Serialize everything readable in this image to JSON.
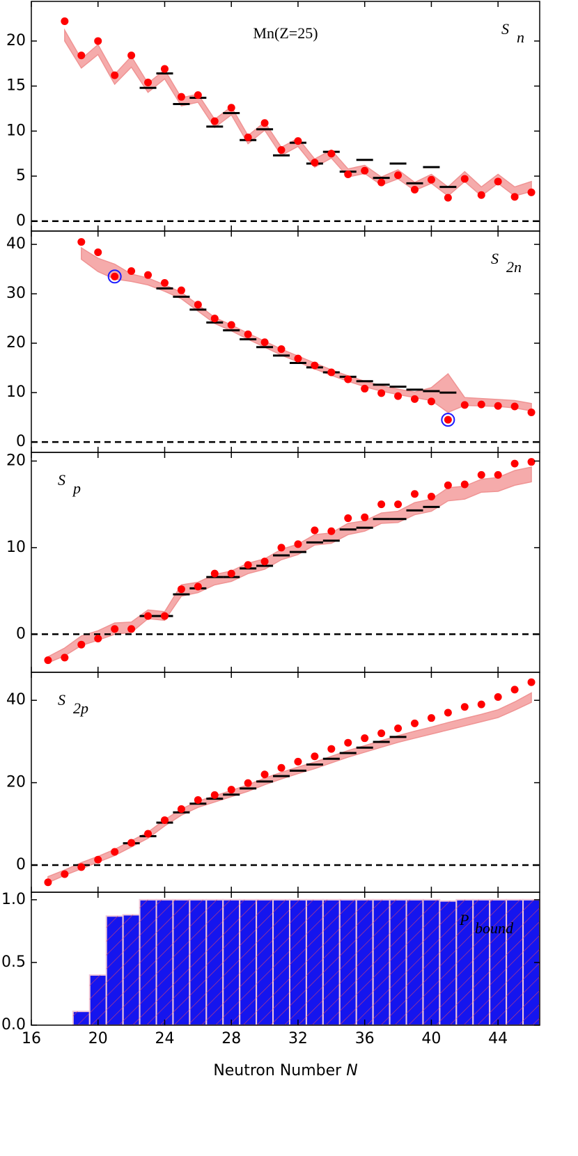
{
  "chart_data": [
    {
      "type": "band_scatter",
      "title": "Mn(Z=25)",
      "label": "S",
      "label_sub": "n",
      "label_position": "upper right",
      "xlim": [
        16,
        46.5
      ],
      "xticks": [
        16,
        20,
        24,
        28,
        32,
        36,
        40,
        44
      ],
      "ylim": [
        -1.1,
        24.4
      ],
      "yticks": [
        0,
        5,
        10,
        15,
        20
      ],
      "zero_line": true,
      "color": "#ff0000",
      "band_color": "#f5a3a3",
      "exp_color": "#000000",
      "x": [
        18,
        19,
        20,
        21,
        22,
        23,
        24,
        25,
        26,
        27,
        28,
        29,
        30,
        31,
        32,
        33,
        34,
        35,
        36,
        37,
        38,
        39,
        40,
        41,
        42,
        43,
        44,
        45,
        46
      ],
      "values": [
        22.2,
        18.4,
        20.0,
        16.2,
        18.4,
        15.4,
        16.9,
        13.8,
        14.0,
        11.1,
        12.6,
        9.3,
        10.9,
        7.9,
        8.9,
        6.5,
        7.5,
        5.2,
        5.6,
        4.3,
        5.1,
        3.5,
        4.6,
        2.6,
        4.7,
        2.9,
        4.4,
        2.7,
        3.2
      ],
      "band_lower": [
        20.0,
        17.0,
        18.5,
        15.2,
        17.1,
        14.3,
        15.8,
        12.8,
        13.2,
        10.4,
        11.8,
        8.6,
        10.1,
        7.3,
        8.3,
        6.0,
        7.0,
        4.9,
        5.3,
        4.0,
        4.7,
        3.4,
        4.2,
        2.8,
        4.4,
        2.8,
        4.2,
        2.8,
        3.3
      ],
      "band_upper": [
        21.2,
        18.0,
        19.6,
        16.3,
        18.3,
        15.3,
        16.8,
        13.7,
        14.1,
        11.3,
        12.7,
        9.5,
        11.0,
        8.2,
        9.2,
        6.9,
        7.9,
        5.8,
        6.2,
        4.9,
        5.7,
        4.3,
        5.2,
        3.8,
        5.5,
        3.8,
        5.2,
        3.8,
        4.4
      ],
      "exp_x": [
        23,
        24,
        25,
        26,
        27,
        28,
        29,
        30,
        31,
        32,
        33,
        34,
        35,
        36,
        37,
        38,
        39,
        40,
        41
      ],
      "exp_values": [
        14.8,
        16.4,
        13.0,
        13.7,
        10.5,
        12.0,
        9.0,
        10.2,
        7.3,
        8.7,
        6.4,
        7.7,
        5.5,
        6.8,
        4.8,
        6.4,
        4.2,
        6.0,
        3.8
      ]
    },
    {
      "type": "band_scatter",
      "label": "S",
      "label_sub": "2n",
      "label_position": "upper right",
      "xlim": [
        16,
        46.5
      ],
      "xticks": [
        16,
        20,
        24,
        28,
        32,
        36,
        40,
        44
      ],
      "ylim": [
        -2.1,
        42.7
      ],
      "yticks": [
        0,
        10,
        20,
        30,
        40
      ],
      "zero_line": true,
      "color": "#ff0000",
      "band_color": "#f5a3a3",
      "exp_color": "#000000",
      "circle_color": "#1a1aff",
      "circled": [
        21,
        41
      ],
      "x": [
        19,
        20,
        21,
        22,
        23,
        24,
        25,
        26,
        27,
        28,
        29,
        30,
        31,
        32,
        33,
        34,
        35,
        36,
        37,
        38,
        39,
        40,
        41,
        42,
        43,
        44,
        45,
        46
      ],
      "values": [
        40.5,
        38.4,
        33.5,
        34.6,
        33.8,
        32.2,
        30.7,
        27.8,
        25.0,
        23.7,
        21.8,
        20.2,
        18.8,
        16.9,
        15.5,
        14.1,
        12.7,
        10.8,
        9.9,
        9.3,
        8.7,
        8.2,
        4.5,
        7.5,
        7.6,
        7.3,
        7.2,
        6.0
      ],
      "band_lower": [
        37,
        34.5,
        33,
        32.5,
        31.8,
        30.5,
        29,
        26.5,
        24,
        22.5,
        20.8,
        19.2,
        17.6,
        16.2,
        14.8,
        13.5,
        12.3,
        11.2,
        10.3,
        9.6,
        9.0,
        8.4,
        6.0,
        7.4,
        7.3,
        7.2,
        6.9,
        6.3
      ],
      "band_upper": [
        39.3,
        37.2,
        36,
        34.0,
        33.2,
        31.8,
        30.3,
        27.8,
        25.2,
        23.7,
        22.0,
        20.4,
        18.8,
        17.4,
        16.0,
        14.6,
        13.4,
        12.3,
        11.4,
        10.7,
        10.1,
        11.0,
        13.8,
        9.0,
        8.8,
        8.6,
        8.4,
        7.8
      ],
      "exp_x": [
        24,
        25,
        26,
        27,
        28,
        29,
        30,
        31,
        32,
        33,
        34,
        35,
        36,
        37,
        38,
        39,
        40,
        41
      ],
      "exp_values": [
        31.1,
        29.4,
        26.8,
        24.2,
        22.6,
        20.8,
        19.2,
        17.5,
        16.0,
        15.1,
        14.1,
        13.2,
        12.3,
        11.6,
        11.2,
        10.6,
        10.3,
        10.0
      ]
    },
    {
      "type": "band_scatter",
      "label": "S",
      "label_sub": "p",
      "label_position": "upper left",
      "xlim": [
        16,
        46.5
      ],
      "xticks": [
        16,
        20,
        24,
        28,
        32,
        36,
        40,
        44
      ],
      "ylim": [
        -4.4,
        21.0
      ],
      "yticks": [
        0,
        10,
        20
      ],
      "zero_line": true,
      "color": "#ff0000",
      "band_color": "#f5a3a3",
      "exp_color": "#000000",
      "x": [
        17,
        18,
        19,
        20,
        21,
        22,
        23,
        24,
        25,
        26,
        27,
        28,
        29,
        30,
        31,
        32,
        33,
        34,
        35,
        36,
        37,
        38,
        39,
        40,
        41,
        42,
        43,
        44,
        45,
        46
      ],
      "values": [
        -3.0,
        -2.7,
        -1.2,
        -0.5,
        0.6,
        0.6,
        2.1,
        2.1,
        5.2,
        5.5,
        7.0,
        7.0,
        8.0,
        8.4,
        10.0,
        10.4,
        12.0,
        11.9,
        13.4,
        13.5,
        15.0,
        15.0,
        16.2,
        15.9,
        17.2,
        17.3,
        18.4,
        18.4,
        19.7,
        19.9
      ],
      "band_lower": [
        -3.3,
        -2.5,
        -1.3,
        -0.7,
        0.0,
        0.2,
        1.8,
        1.6,
        4.4,
        4.8,
        5.7,
        6.1,
        7.0,
        7.5,
        8.6,
        9.2,
        10.3,
        10.5,
        11.5,
        11.9,
        12.8,
        12.9,
        13.8,
        14.2,
        15.4,
        15.6,
        16.4,
        16.5,
        17.2,
        17.6
      ],
      "band_upper": [
        -2.6,
        -1.6,
        -0.2,
        0.4,
        1.3,
        1.4,
        2.8,
        2.6,
        5.7,
        6.0,
        6.9,
        7.3,
        8.2,
        8.7,
        9.8,
        10.4,
        11.5,
        11.7,
        12.8,
        13.1,
        14.0,
        14.2,
        15.2,
        15.6,
        16.9,
        17.1,
        17.9,
        18.1,
        18.9,
        19.3
      ],
      "exp_x": [
        23,
        24,
        25,
        26,
        27,
        28,
        29,
        30,
        31,
        32,
        33,
        34,
        35,
        36,
        37,
        38,
        39,
        40
      ],
      "exp_values": [
        2.1,
        2.1,
        4.6,
        5.3,
        6.6,
        6.6,
        7.6,
        7.9,
        9.1,
        9.5,
        10.6,
        10.8,
        12.1,
        12.3,
        13.3,
        13.3,
        14.3,
        14.7
      ]
    },
    {
      "type": "band_scatter",
      "label": "S",
      "label_sub": "2p",
      "label_position": "upper left",
      "xlim": [
        16,
        46.5
      ],
      "xticks": [
        16,
        20,
        24,
        28,
        32,
        36,
        40,
        44
      ],
      "ylim": [
        -6.6,
        46.8
      ],
      "yticks": [
        0,
        20,
        40
      ],
      "zero_line": true,
      "color": "#ff0000",
      "band_color": "#f5a3a3",
      "exp_color": "#000000",
      "x": [
        17,
        18,
        19,
        20,
        21,
        22,
        23,
        24,
        25,
        26,
        27,
        28,
        29,
        30,
        31,
        32,
        33,
        34,
        35,
        36,
        37,
        38,
        39,
        40,
        41,
        42,
        43,
        44,
        45,
        46
      ],
      "values": [
        -4.2,
        -2.2,
        -0.5,
        1.3,
        3.2,
        5.4,
        7.6,
        10.9,
        13.6,
        15.8,
        17.0,
        18.3,
        19.9,
        22.0,
        23.6,
        25.1,
        26.4,
        28.2,
        29.7,
        30.8,
        32.0,
        33.2,
        34.4,
        35.7,
        37.0,
        38.4,
        39.0,
        40.8,
        42.6,
        44.4
      ],
      "band_lower": [
        -4.3,
        -2.5,
        -0.9,
        0.7,
        2.3,
        4.4,
        6.5,
        9.5,
        12.1,
        14.0,
        15.3,
        16.6,
        17.9,
        19.5,
        20.9,
        22.2,
        23.4,
        24.8,
        26.2,
        27.4,
        28.6,
        29.8,
        30.8,
        31.8,
        32.8,
        33.8,
        34.8,
        35.8,
        37.6,
        39.5
      ],
      "band_upper": [
        -2.8,
        -1.2,
        0.6,
        2.1,
        3.8,
        5.9,
        8.0,
        11.0,
        13.6,
        15.5,
        16.8,
        18.1,
        19.5,
        21.1,
        22.5,
        23.8,
        25.0,
        26.4,
        27.8,
        29.0,
        30.2,
        31.4,
        32.5,
        33.5,
        34.6,
        35.6,
        36.6,
        37.7,
        39.6,
        41.8
      ],
      "exp_x": [
        22,
        23,
        24,
        25,
        26,
        27,
        28,
        29,
        30,
        31,
        32,
        33,
        34,
        35,
        36,
        37,
        38
      ],
      "exp_values": [
        5.3,
        7.0,
        10.3,
        12.8,
        14.9,
        16.1,
        17.1,
        18.6,
        20.3,
        21.6,
        22.9,
        24.4,
        25.8,
        27.2,
        28.5,
        29.9,
        31.1
      ]
    },
    {
      "type": "bar",
      "label": "P",
      "label_sub": "bound",
      "label_position": "upper right",
      "xlim": [
        16,
        46.5
      ],
      "xticks": [
        16,
        20,
        24,
        28,
        32,
        36,
        40,
        44
      ],
      "xlabel": "Neutron Number",
      "xlabel_var": "N",
      "ylim": [
        0,
        1.06
      ],
      "yticks": [
        {
          "value": 0,
          "label": "0.0"
        },
        {
          "value": 0.5,
          "label": "0.5"
        },
        {
          "value": 1.0,
          "label": "1.0"
        }
      ],
      "color": "#1515ee",
      "edge_color": "#f0c8d8",
      "x": [
        17,
        18,
        19,
        20,
        21,
        22,
        23,
        24,
        25,
        26,
        27,
        28,
        29,
        30,
        31,
        32,
        33,
        34,
        35,
        36,
        37,
        38,
        39,
        40,
        41,
        42,
        43,
        44,
        45,
        46
      ],
      "values": [
        0.0,
        0.0,
        0.11,
        0.4,
        0.87,
        0.88,
        1.0,
        1.0,
        1.0,
        1.0,
        1.0,
        1.0,
        1.0,
        1.0,
        1.0,
        1.0,
        1.0,
        1.0,
        1.0,
        1.0,
        1.0,
        1.0,
        1.0,
        1.0,
        0.99,
        1.0,
        1.0,
        1.0,
        1.0,
        1.0
      ]
    }
  ]
}
